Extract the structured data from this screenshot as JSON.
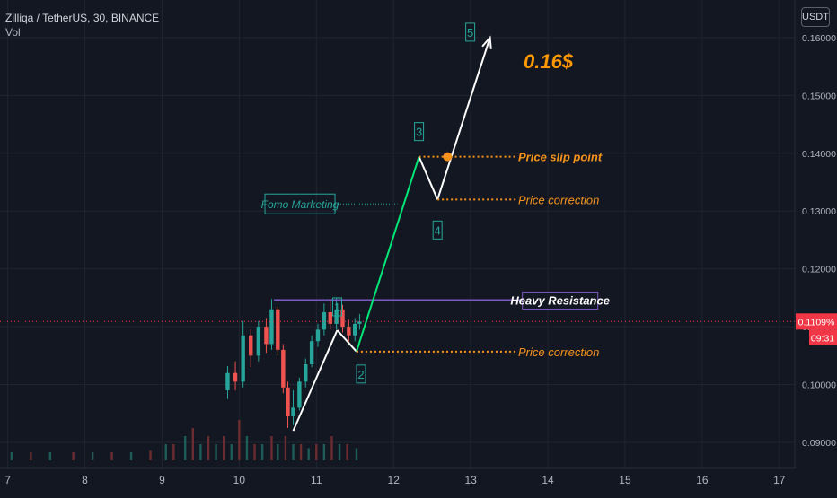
{
  "header": {
    "symbol_line": "Zilliqa / TetherUS, 30, BINANCE",
    "vol_label": "Vol"
  },
  "currency_button": "USDT",
  "price_scale": {
    "ticks": [
      "0.16000",
      "0.15000",
      "0.14000",
      "0.13000",
      "0.12000",
      "0.11000",
      "0.10000",
      "0.09000"
    ],
    "current_price_label": "0.1109%",
    "countdown_label": "09:31"
  },
  "time_scale": {
    "ticks": [
      "7",
      "8",
      "9",
      "10",
      "11",
      "12",
      "13",
      "14",
      "15",
      "16",
      "17"
    ]
  },
  "colors": {
    "background": "#131722",
    "grid": "#1f2430",
    "candle_up": "#26a69a",
    "candle_down": "#ef5350",
    "vol_up": "#1d5c57",
    "vol_down": "#6b2c2f",
    "resistance_line": "#7e57c2",
    "impulse_green": "#00e676",
    "label_green": "#26a69a",
    "label_orange": "#f7931a",
    "target_orange": "#ff9800",
    "current_price_red": "#f23645"
  },
  "chart_data": {
    "type": "line",
    "x_axis": "date (day of month)",
    "xlim": [
      6.9,
      17.2
    ],
    "ylim": [
      0.0855,
      0.1665
    ],
    "y_scale": "linear",
    "grid": true,
    "current_price": 0.1109,
    "candles": [
      [
        9.85,
        0.099,
        0.102,
        0.0975,
        0.1032
      ],
      [
        9.95,
        0.102,
        0.1005,
        0.099,
        0.104
      ],
      [
        10.05,
        0.1005,
        0.1085,
        0.0995,
        0.111
      ],
      [
        10.15,
        0.1085,
        0.105,
        0.103,
        0.1095
      ],
      [
        10.25,
        0.105,
        0.11,
        0.104,
        0.111
      ],
      [
        10.35,
        0.11,
        0.107,
        0.1055,
        0.1115
      ],
      [
        10.42,
        0.107,
        0.113,
        0.106,
        0.1148
      ],
      [
        10.5,
        0.113,
        0.106,
        0.105,
        0.1135
      ],
      [
        10.57,
        0.106,
        0.0995,
        0.0985,
        0.107
      ],
      [
        10.63,
        0.0995,
        0.0945,
        0.0925,
        0.1005
      ],
      [
        10.7,
        0.0945,
        0.096,
        0.093,
        0.099
      ],
      [
        10.78,
        0.096,
        0.1005,
        0.0955,
        0.1012
      ],
      [
        10.86,
        0.1005,
        0.1035,
        0.0995,
        0.1045
      ],
      [
        10.94,
        0.1035,
        0.1075,
        0.103,
        0.1085
      ],
      [
        11.02,
        0.1075,
        0.1095,
        0.1065,
        0.1105
      ],
      [
        11.1,
        0.1095,
        0.1125,
        0.1085,
        0.114
      ],
      [
        11.18,
        0.1125,
        0.1105,
        0.1095,
        0.1148
      ],
      [
        11.26,
        0.1105,
        0.113,
        0.1095,
        0.115
      ],
      [
        11.34,
        0.113,
        0.11,
        0.109,
        0.1138
      ],
      [
        11.42,
        0.11,
        0.1085,
        0.107,
        0.1112
      ],
      [
        11.5,
        0.1085,
        0.1105,
        0.1075,
        0.1115
      ],
      [
        11.56,
        0.1105,
        0.1109,
        0.1095,
        0.1122
      ]
    ],
    "volume": [
      [
        7.05,
        1
      ],
      [
        7.3,
        1
      ],
      [
        7.55,
        1
      ],
      [
        7.85,
        1
      ],
      [
        8.1,
        1
      ],
      [
        8.35,
        1
      ],
      [
        8.6,
        1
      ],
      [
        8.85,
        1.2
      ],
      [
        9.05,
        2
      ],
      [
        9.15,
        2
      ],
      [
        9.3,
        3
      ],
      [
        9.4,
        4
      ],
      [
        9.5,
        2
      ],
      [
        9.6,
        3
      ],
      [
        9.7,
        2
      ],
      [
        9.8,
        3
      ],
      [
        9.9,
        2
      ],
      [
        10.0,
        5
      ],
      [
        10.1,
        3
      ],
      [
        10.2,
        2
      ],
      [
        10.3,
        2
      ],
      [
        10.42,
        3
      ],
      [
        10.5,
        2
      ],
      [
        10.6,
        3
      ],
      [
        10.7,
        2
      ],
      [
        10.8,
        2
      ],
      [
        10.9,
        1.5
      ],
      [
        11.0,
        2
      ],
      [
        11.1,
        2
      ],
      [
        11.2,
        3
      ],
      [
        11.3,
        2
      ],
      [
        11.4,
        2
      ],
      [
        11.52,
        1.5
      ]
    ],
    "projection_path": [
      {
        "x": 10.7,
        "y": 0.092,
        "wave": ""
      },
      {
        "x": 11.27,
        "y": 0.1094,
        "wave": "1"
      },
      {
        "x": 11.52,
        "y": 0.1057,
        "wave": "2"
      },
      {
        "x": 12.33,
        "y": 0.1394,
        "wave": "3"
      },
      {
        "x": 12.57,
        "y": 0.132,
        "wave": "4"
      },
      {
        "x": 13.25,
        "y": 0.16,
        "wave": "5"
      }
    ],
    "resistance": {
      "x1": 10.45,
      "x2": 13.67,
      "y": 0.1146,
      "label": "Heavy Resistance"
    },
    "price_slip": {
      "x": 12.33,
      "y": 0.1394,
      "dot_x": 12.7,
      "label": "Price slip point"
    },
    "correction_upper": {
      "x": 12.57,
      "y": 0.132,
      "label": "Price correction"
    },
    "correction_lower": {
      "x": 11.52,
      "y": 0.1057,
      "label": "Price correction"
    },
    "fomo_note": {
      "label": "Fomo Marketing",
      "target_x": 12.05,
      "target_y": 0.13
    },
    "target_label": "0.16$"
  }
}
